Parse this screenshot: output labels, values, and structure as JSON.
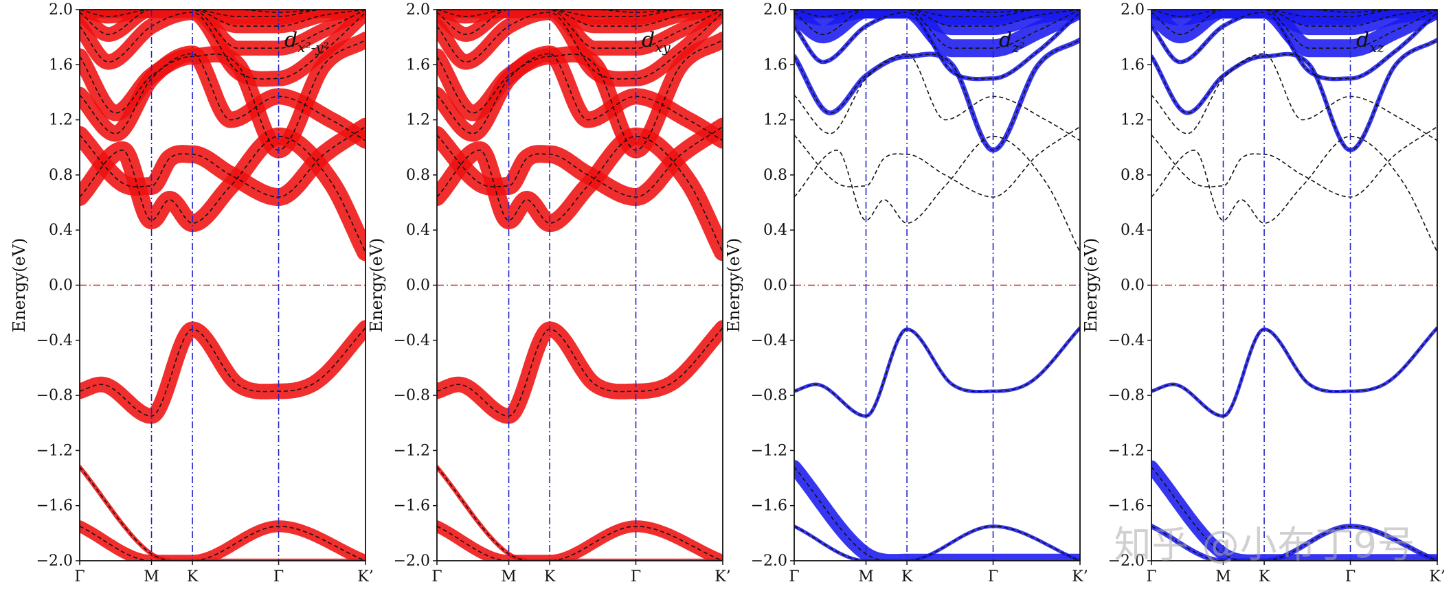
{
  "chart_data": [
    {
      "type": "line",
      "orbital_label": "d_{x^2-y^2}",
      "weight_color": "#ee1111",
      "ylabel": "Energy(eV)",
      "ylim": [
        -2.0,
        2.0
      ],
      "yticks": [
        "2.0",
        "1.6",
        "1.2",
        "0.8",
        "0.4",
        "0.0",
        "−0.4",
        "−0.8",
        "−1.2",
        "−1.6",
        "−2.0"
      ],
      "xticks": [
        "Γ",
        "M",
        "K",
        "Γ",
        "K’"
      ],
      "fermi_level": 0.0,
      "weights": [
        0.1,
        0.6,
        0.85,
        1.0,
        1.0,
        0.9,
        0.9,
        0.85,
        0.8,
        0.75,
        0.9,
        0.95
      ]
    },
    {
      "type": "line",
      "orbital_label": "d_{xy}",
      "weight_color": "#ee1111",
      "ylabel": "Energy(eV)",
      "ylim": [
        -2.0,
        2.0
      ],
      "yticks": [
        "2.0",
        "1.6",
        "1.2",
        "0.8",
        "0.4",
        "0.0",
        "−0.4",
        "−0.8",
        "−1.2",
        "−1.6",
        "−2.0"
      ],
      "xticks": [
        "Γ",
        "M",
        "K",
        "Γ",
        "K’"
      ],
      "fermi_level": 0.0,
      "weights": [
        0.1,
        0.6,
        0.85,
        1.0,
        1.0,
        0.9,
        0.9,
        0.85,
        0.8,
        0.75,
        0.9,
        0.95
      ]
    },
    {
      "type": "line",
      "orbital_label": "d_{z^2}",
      "weight_color": "#1a1aee",
      "ylabel": "Energy(eV)",
      "ylim": [
        -2.0,
        2.0
      ],
      "yticks": [
        "2.0",
        "1.6",
        "1.2",
        "0.8",
        "0.4",
        "0.0",
        "−0.4",
        "−0.8",
        "−1.2",
        "−1.6",
        "−2.0"
      ],
      "xticks": [
        "Γ",
        "M",
        "K",
        "Γ",
        "K’"
      ],
      "fermi_level": 0.0,
      "weights": [
        0.75,
        0.05,
        0.05,
        0.0,
        0.0,
        0.0,
        0.15,
        0.1,
        1.0,
        1.0,
        0.95,
        0.95
      ]
    },
    {
      "type": "line",
      "orbital_label": "d_{xz}",
      "weight_color": "#1a1aee",
      "ylabel": "Energy(eV)",
      "ylim": [
        -2.0,
        2.0
      ],
      "yticks": [
        "2.0",
        "1.6",
        "1.2",
        "0.8",
        "0.4",
        "0.0",
        "−0.4",
        "−0.8",
        "−1.2",
        "−1.6",
        "−2.0"
      ],
      "xticks": [
        "Γ",
        "M",
        "K",
        "Γ",
        "K’"
      ],
      "fermi_level": 0.0,
      "weights": [
        0.7,
        0.15,
        0.05,
        0.0,
        0.0,
        0.0,
        0.1,
        0.1,
        1.0,
        1.0,
        0.95,
        0.95
      ]
    }
  ],
  "bands": [
    {
      "x": [
        0,
        1,
        1.57,
        2.77,
        3.98
      ],
      "y": [
        -1.32,
        -1.95,
        -2.0,
        -2.0,
        -2.0
      ]
    },
    {
      "x": [
        0,
        1,
        1.57,
        2.77,
        3.98
      ],
      "y": [
        -1.75,
        -2.0,
        -2.0,
        -1.75,
        -2.0
      ]
    },
    {
      "x": [
        0,
        0.3,
        1,
        1.57,
        2.2,
        2.77,
        3.3,
        3.98
      ],
      "y": [
        -0.77,
        -0.72,
        -0.95,
        -0.32,
        -0.72,
        -0.77,
        -0.7,
        -0.31
      ]
    },
    {
      "x": [
        0,
        0.6,
        1,
        1.25,
        1.57,
        2.1,
        2.77,
        3.5,
        3.98
      ],
      "y": [
        0.64,
        0.98,
        0.47,
        0.62,
        0.45,
        0.72,
        1.08,
        0.75,
        0.24
      ]
    },
    {
      "x": [
        0,
        0.6,
        1,
        1.25,
        1.57,
        2.1,
        2.77,
        3.4,
        3.98
      ],
      "y": [
        1.09,
        0.74,
        0.72,
        0.92,
        0.95,
        0.8,
        0.64,
        0.95,
        1.15
      ]
    },
    {
      "x": [
        0,
        0.5,
        1,
        1.57,
        2.1,
        2.77,
        3.5,
        3.98
      ],
      "y": [
        1.38,
        1.1,
        1.5,
        1.68,
        1.2,
        1.37,
        1.2,
        1.05
      ]
    },
    {
      "x": [
        0,
        0.5,
        1,
        1.57,
        2.2,
        2.77,
        3.4,
        3.98
      ],
      "y": [
        1.66,
        1.25,
        1.52,
        1.66,
        1.6,
        0.98,
        1.6,
        1.78
      ]
    },
    {
      "x": [
        0,
        0.4,
        1,
        1.57,
        2.2,
        2.77,
        3.4,
        3.98
      ],
      "y": [
        1.88,
        1.62,
        1.88,
        1.98,
        1.55,
        1.5,
        1.7,
        1.98
      ]
    },
    {
      "x": [
        0,
        0.4,
        1,
        1.57,
        2.2,
        2.77,
        3.4,
        3.98
      ],
      "y": [
        1.98,
        1.82,
        2.0,
        2.0,
        1.72,
        1.72,
        1.85,
        2.0
      ]
    },
    {
      "x": [
        0,
        0.4,
        1,
        1.57,
        2.2,
        2.77,
        3.4,
        3.98
      ],
      "y": [
        2.0,
        1.95,
        2.0,
        2.0,
        1.88,
        1.88,
        1.96,
        2.0
      ]
    },
    {
      "x": [
        0,
        0.5,
        1,
        1.57,
        2.2,
        2.77,
        3.4,
        3.98
      ],
      "y": [
        2.0,
        2.0,
        2.0,
        2.0,
        1.95,
        1.95,
        2.0,
        2.0
      ]
    },
    {
      "x": [
        0,
        0.5,
        1,
        1.57,
        2.2,
        2.77,
        3.4,
        3.98
      ],
      "y": [
        2.0,
        2.0,
        2.0,
        2.0,
        2.0,
        1.98,
        2.0,
        2.0
      ]
    }
  ],
  "watermark": "知乎 @小布丁9号"
}
